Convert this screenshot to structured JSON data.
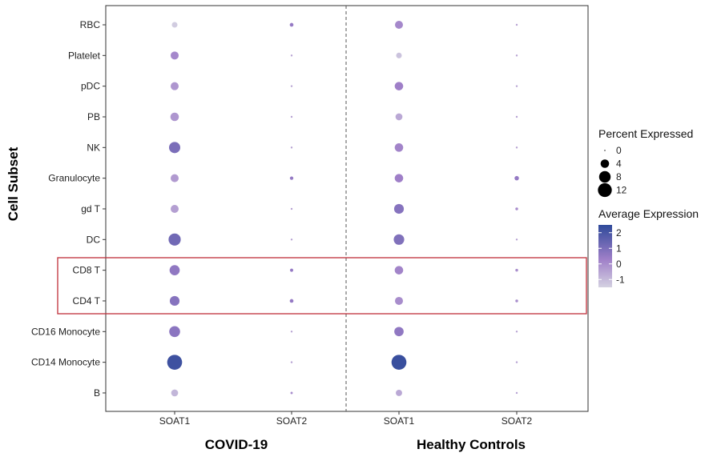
{
  "chart_data": {
    "type": "dot",
    "ylabel": "Cell Subset",
    "panels": [
      "COVID-19",
      "Healthy Controls"
    ],
    "genes": [
      "SOAT1",
      "SOAT2"
    ],
    "cell_subsets": [
      "RBC",
      "Platelet",
      "pDC",
      "PB",
      "NK",
      "Granulocyte",
      "gd T",
      "DC",
      "CD8 T",
      "CD4 T",
      "CD16 Monocyte",
      "CD14 Monocyte",
      "B"
    ],
    "series": [
      {
        "name": "COVID-19",
        "SOAT1": {
          "pct": [
            1.5,
            3.5,
            3.5,
            4,
            7.5,
            3.5,
            3.5,
            9,
            6,
            5.5,
            7,
            14,
            2.5
          ],
          "avg": [
            -1.4,
            0.1,
            -0.2,
            -0.2,
            1.0,
            -0.3,
            -0.4,
            1.2,
            0.6,
            0.8,
            0.7,
            2.2,
            -0.9
          ]
        },
        "SOAT2": {
          "pct": [
            0.5,
            0.05,
            0.05,
            0.05,
            0.05,
            0.4,
            0.05,
            0.05,
            0.3,
            0.5,
            0.05,
            0.05,
            0.1
          ],
          "avg": [
            0.5,
            -0.5,
            -0.5,
            -0.5,
            -0.5,
            0.5,
            -0.5,
            -0.5,
            0.5,
            0.5,
            -0.5,
            -0.5,
            0.0
          ]
        }
      },
      {
        "name": "Healthy Controls",
        "SOAT1": {
          "pct": [
            3.5,
            1.5,
            4,
            2.5,
            4,
            4,
            5.5,
            6.5,
            4,
            3.5,
            5,
            14,
            2
          ],
          "avg": [
            0.1,
            -1.2,
            0.3,
            -0.6,
            0.2,
            0.3,
            0.8,
            0.9,
            0.2,
            0.0,
            0.6,
            2.3,
            -0.6
          ]
        },
        "SOAT2": {
          "pct": [
            0.05,
            0.05,
            0.05,
            0.05,
            0.05,
            0.8,
            0.2,
            0.05,
            0.2,
            0.2,
            0.05,
            0.05,
            0.05
          ],
          "avg": [
            -0.5,
            -0.5,
            -0.5,
            -0.5,
            -0.5,
            0.5,
            0.0,
            -0.5,
            0.0,
            0.0,
            -0.5,
            -0.5,
            -0.5
          ]
        }
      }
    ],
    "size_legend": {
      "title": "Percent Expressed",
      "values": [
        0,
        4,
        8,
        12
      ],
      "labels": [
        "0",
        "4",
        "8",
        "12"
      ]
    },
    "color_legend": {
      "title": "Average Expression",
      "range": [
        -1.5,
        2.5
      ],
      "ticks": [
        2,
        1,
        0,
        -1
      ],
      "labels": [
        "2",
        "1",
        "0",
        "-1"
      ],
      "low_color": "#d4d1e1",
      "mid_color": "#9f7fc8",
      "high_color": "#2f4a9a"
    },
    "highlighted_rows": [
      "CD8 T",
      "CD4 T"
    ],
    "highlight_color": "#c0303a"
  }
}
